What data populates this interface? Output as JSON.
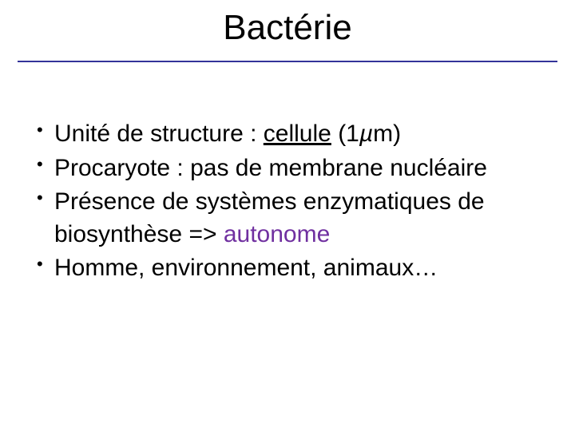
{
  "title": "Bactérie",
  "bullets": [
    {
      "pre": "Unité de structure : ",
      "underlined": "cellule",
      "post1": " (1",
      "italic": "µ",
      "post2": "m)"
    },
    {
      "text": "Procaryote : pas de membrane nucléaire"
    },
    {
      "line1": "Présence de systèmes enzymatiques de biosynthèse => ",
      "highlight": "autonome"
    },
    {
      "text": "Homme, environnement, animaux…"
    }
  ],
  "colors": {
    "rule": "#333399",
    "highlight": "#7030a0",
    "text": "#000000",
    "background": "#ffffff"
  },
  "typography": {
    "title_fontsize": 44,
    "body_fontsize": 30,
    "font_family": "Comic Sans MS"
  }
}
